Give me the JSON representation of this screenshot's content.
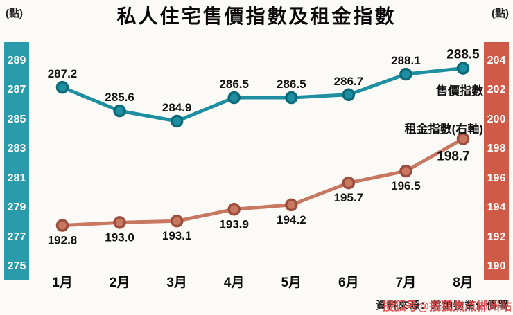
{
  "title": "私人住宅售價指數及租金指數",
  "unit_left": "(點)",
  "unit_right": "(點)",
  "source": "資料來源：差餉物業估價署",
  "watermark": "搜狐号@搜狐焦点郴州站",
  "colors": {
    "left_axis_bar": "#2a9bab",
    "right_axis_bar": "#cf5a48",
    "sale_line": "#1e8fa0",
    "sale_marker_ring": "#0e6a79",
    "rent_line": "#c87761",
    "rent_marker_ring": "#9c4d3b",
    "label_text": "#111111"
  },
  "chart_data": {
    "type": "line",
    "title": "私人住宅售價指數及租金指數",
    "categories": [
      "1月",
      "2月",
      "3月",
      "4月",
      "5月",
      "6月",
      "7月",
      "8月"
    ],
    "series": [
      {
        "name": "售價指數",
        "axis": "left",
        "values": [
          287.2,
          285.6,
          284.9,
          286.5,
          286.5,
          286.7,
          288.1,
          288.5
        ],
        "color": "#1e8fa0",
        "marker_ring": "#0e6a79",
        "label_side": "above"
      },
      {
        "name": "租金指數(右軸)",
        "axis": "right",
        "values": [
          192.8,
          193.0,
          193.1,
          193.9,
          194.2,
          195.7,
          196.5,
          198.7
        ],
        "color": "#c87761",
        "marker_ring": "#9c4d3b",
        "label_side": "below"
      }
    ],
    "left_axis": {
      "ticks": [
        289,
        287,
        285,
        283,
        281,
        279,
        277,
        275
      ],
      "min": 275,
      "max": 289
    },
    "right_axis": {
      "ticks": [
        204,
        202,
        200,
        198,
        196,
        194,
        192,
        190
      ],
      "min": 190,
      "max": 204
    },
    "legend_position": "inline-right",
    "grid": false
  }
}
